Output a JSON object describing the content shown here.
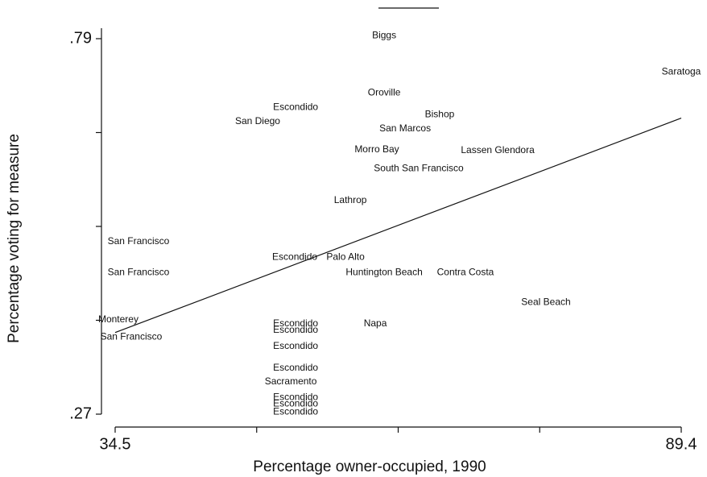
{
  "chart_data": {
    "type": "scatter",
    "x_label": "Percentage owner-occupied, 1990",
    "y_label": "Percentage voting for measure",
    "xlim": [
      34.5,
      89.4
    ],
    "ylim": [
      0.27,
      0.79
    ],
    "xticks": [
      34.5,
      89.4
    ],
    "xminorticks": [
      48.225,
      61.95,
      75.675
    ],
    "yticks": [
      {
        "value": 0.27,
        "label": ".27"
      },
      {
        "value": 0.79,
        "label": ".79"
      }
    ],
    "yminorticks": [
      0.4,
      0.53,
      0.66
    ],
    "labels": [
      "Biggs",
      "Saratoga",
      "Oroville",
      "Escondido",
      "Bishop",
      "San Diego",
      "San Marcos",
      "Morro Bay",
      "Lassen Glendora",
      "South San Francisco",
      "Lathrop",
      "San Francisco",
      "Escondido",
      "Palo Alto",
      "San Francisco",
      "Huntington Beach",
      "Contra Costa",
      "Seal Beach",
      "Monterey",
      "Escondido",
      "Escondido",
      "Napa",
      "San Francisco",
      "Escondido",
      "Escondido",
      "Sacramento",
      "Escondido",
      "Escondido",
      "Escondido"
    ],
    "x": [
      60.59,
      89.4,
      60.59,
      52.0,
      65.97,
      48.32,
      62.62,
      59.88,
      71.6,
      63.94,
      57.31,
      36.76,
      51.92,
      56.84,
      36.76,
      60.59,
      68.47,
      76.28,
      34.81,
      52.0,
      52.0,
      59.73,
      36.06,
      52.0,
      52.0,
      51.53,
      52.0,
      52.0,
      52.0
    ],
    "y": [
      0.794,
      0.744,
      0.715,
      0.695,
      0.685,
      0.675,
      0.665,
      0.636,
      0.635,
      0.61,
      0.566,
      0.509,
      0.487,
      0.487,
      0.466,
      0.466,
      0.466,
      0.425,
      0.401,
      0.395,
      0.386,
      0.395,
      0.377,
      0.364,
      0.334,
      0.315,
      0.293,
      0.284,
      0.273
    ],
    "fit_line": {
      "x": [
        34.5,
        89.4
      ],
      "y": [
        0.383,
        0.68
      ]
    }
  }
}
